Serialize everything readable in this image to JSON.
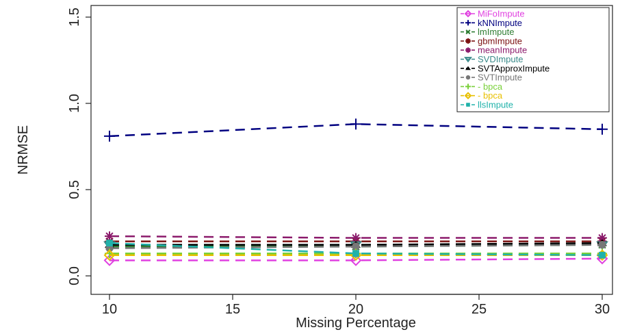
{
  "chart_data": {
    "type": "line",
    "title": "",
    "xlabel": "Missing Percentage",
    "ylabel": "NRMSE",
    "xlim": [
      10,
      30
    ],
    "ylim": [
      0.0,
      1.5
    ],
    "x_ticks": [
      "10",
      "15",
      "20",
      "25",
      "30"
    ],
    "y_ticks": [
      "0.0",
      "0.5",
      "1.0",
      "1.5"
    ],
    "x": [
      10,
      20,
      30
    ],
    "grid": false,
    "legend_position": "top-right",
    "series": [
      {
        "name": "MiFoImpute",
        "values": [
          0.09,
          0.09,
          0.1
        ],
        "color": "#e040e0",
        "marker": "diamond"
      },
      {
        "name": "kNNImpute",
        "values": [
          0.81,
          0.88,
          0.85
        ],
        "color": "#000080",
        "marker": "plus"
      },
      {
        "name": "lmImpute",
        "values": [
          0.17,
          0.17,
          0.18
        ],
        "color": "#2e7d32",
        "marker": "cross"
      },
      {
        "name": "gbmImpute",
        "values": [
          0.2,
          0.2,
          0.2
        ],
        "color": "#7b1010",
        "marker": "asterisk"
      },
      {
        "name": "meanImpute",
        "values": [
          0.23,
          0.22,
          0.22
        ],
        "color": "#8b1a6b",
        "marker": "asterisk-x"
      },
      {
        "name": "SVDImpute",
        "values": [
          0.18,
          0.18,
          0.18
        ],
        "color": "#3a8a8a",
        "marker": "triangle-down"
      },
      {
        "name": "SVTApproxImpute",
        "values": [
          0.18,
          0.18,
          0.19
        ],
        "color": "#000000",
        "marker": "triangle-up"
      },
      {
        "name": "SVTImpute",
        "values": [
          0.16,
          0.17,
          0.18
        ],
        "color": "#777777",
        "marker": "circle"
      },
      {
        "name": "- bpca",
        "values": [
          0.13,
          0.13,
          0.13
        ],
        "color": "#7ad03a",
        "marker": "plus"
      },
      {
        "name": "- bpca",
        "values": [
          0.12,
          0.12,
          0.12
        ],
        "color": "#e8c000",
        "marker": "diamond"
      },
      {
        "name": "llsImpute",
        "values": [
          0.19,
          0.13,
          0.12
        ],
        "color": "#20b2aa",
        "marker": "square"
      }
    ]
  }
}
